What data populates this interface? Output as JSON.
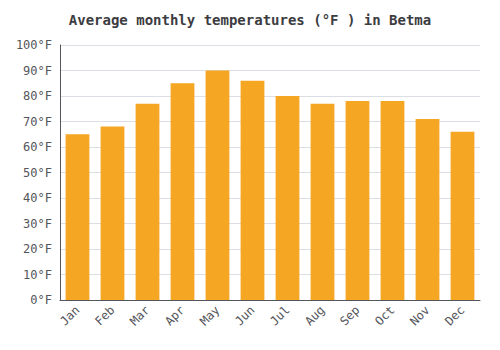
{
  "chart_data": {
    "type": "bar",
    "title": "Average monthly temperatures (°F ) in Betma",
    "categories": [
      "Jan",
      "Feb",
      "Mar",
      "Apr",
      "May",
      "Jun",
      "Jul",
      "Aug",
      "Sep",
      "Oct",
      "Nov",
      "Dec"
    ],
    "values": [
      65,
      68,
      77,
      85,
      90,
      86,
      80,
      77,
      78,
      78,
      71,
      66
    ],
    "color": "#F5A623",
    "ylim": [
      0,
      100
    ],
    "yticks": [
      {
        "value": 0,
        "label": "0°F"
      },
      {
        "value": 10,
        "label": "10°F"
      },
      {
        "value": 20,
        "label": "20°F"
      },
      {
        "value": 30,
        "label": "30°F"
      },
      {
        "value": 40,
        "label": "40°F"
      },
      {
        "value": 50,
        "label": "50°F"
      },
      {
        "value": 60,
        "label": "60°F"
      },
      {
        "value": 70,
        "label": "70°F"
      },
      {
        "value": 80,
        "label": "80°F"
      },
      {
        "value": 90,
        "label": "90°F"
      },
      {
        "value": 100,
        "label": "100°F"
      }
    ],
    "grid": true
  }
}
